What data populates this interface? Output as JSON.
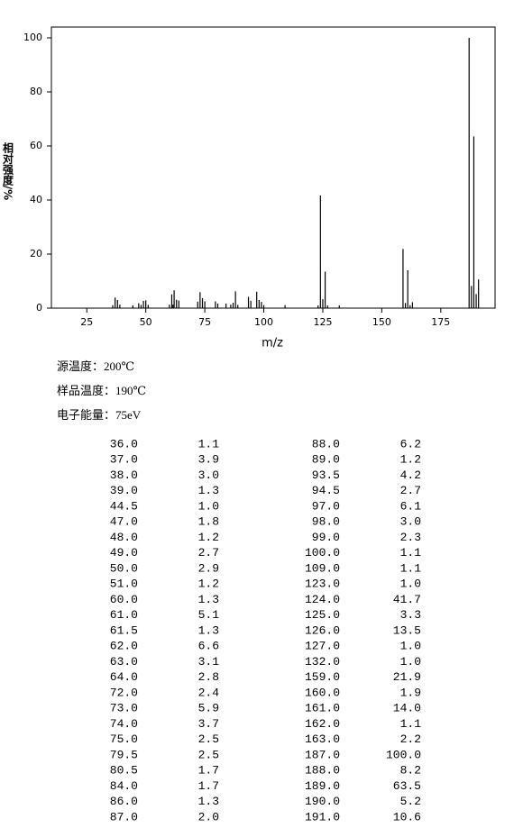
{
  "chart_data": {
    "type": "bar",
    "x_label": "m/z",
    "y_label": "相对强度/%",
    "x": [
      36,
      37,
      38,
      39,
      44.5,
      47,
      48,
      49,
      50,
      51,
      60,
      61,
      61.5,
      62,
      63,
      64,
      72,
      73,
      74,
      75,
      79.5,
      80.5,
      84,
      86,
      87,
      88,
      89,
      93.5,
      94.5,
      97,
      98,
      99,
      100,
      109,
      123,
      124,
      125,
      126,
      127,
      132,
      159,
      160,
      161,
      162,
      163,
      187,
      188,
      189,
      190,
      191
    ],
    "values": [
      1.1,
      3.9,
      3.0,
      1.3,
      1.0,
      1.8,
      1.2,
      2.7,
      2.9,
      1.2,
      1.3,
      5.1,
      1.3,
      6.6,
      3.1,
      2.8,
      2.4,
      5.9,
      3.7,
      2.5,
      2.5,
      1.7,
      1.7,
      1.3,
      2.0,
      6.2,
      1.2,
      4.2,
      2.7,
      6.1,
      3.0,
      2.3,
      1.1,
      1.1,
      1.0,
      41.7,
      3.3,
      13.5,
      1.0,
      1.0,
      21.9,
      1.9,
      14.0,
      1.1,
      2.2,
      100.0,
      8.2,
      63.5,
      5.2,
      10.6
    ],
    "color": "#000000",
    "xlim": [
      10,
      198
    ],
    "ylim": [
      0,
      104
    ],
    "xticks": [
      25,
      50,
      75,
      100,
      125,
      150,
      175
    ],
    "yticks": [
      0,
      20,
      40,
      60,
      80,
      100
    ]
  },
  "info": [
    "源温度：200℃",
    "样品温度：190℃",
    "电子能量：75eV"
  ],
  "peak_table": {
    "rows": [
      [
        "36.0",
        "1.1",
        "88.0",
        "6.2"
      ],
      [
        "37.0",
        "3.9",
        "89.0",
        "1.2"
      ],
      [
        "38.0",
        "3.0",
        "93.5",
        "4.2"
      ],
      [
        "39.0",
        "1.3",
        "94.5",
        "2.7"
      ],
      [
        "44.5",
        "1.0",
        "97.0",
        "6.1"
      ],
      [
        "47.0",
        "1.8",
        "98.0",
        "3.0"
      ],
      [
        "48.0",
        "1.2",
        "99.0",
        "2.3"
      ],
      [
        "49.0",
        "2.7",
        "100.0",
        "1.1"
      ],
      [
        "50.0",
        "2.9",
        "109.0",
        "1.1"
      ],
      [
        "51.0",
        "1.2",
        "123.0",
        "1.0"
      ],
      [
        "60.0",
        "1.3",
        "124.0",
        "41.7"
      ],
      [
        "61.0",
        "5.1",
        "125.0",
        "3.3"
      ],
      [
        "61.5",
        "1.3",
        "126.0",
        "13.5"
      ],
      [
        "62.0",
        "6.6",
        "127.0",
        "1.0"
      ],
      [
        "63.0",
        "3.1",
        "132.0",
        "1.0"
      ],
      [
        "64.0",
        "2.8",
        "159.0",
        "21.9"
      ],
      [
        "72.0",
        "2.4",
        "160.0",
        "1.9"
      ],
      [
        "73.0",
        "5.9",
        "161.0",
        "14.0"
      ],
      [
        "74.0",
        "3.7",
        "162.0",
        "1.1"
      ],
      [
        "75.0",
        "2.5",
        "163.0",
        "2.2"
      ],
      [
        "79.5",
        "2.5",
        "187.0",
        "100.0"
      ],
      [
        "80.5",
        "1.7",
        "188.0",
        "8.2"
      ],
      [
        "84.0",
        "1.7",
        "189.0",
        "63.5"
      ],
      [
        "86.0",
        "1.3",
        "190.0",
        "5.2"
      ],
      [
        "87.0",
        "2.0",
        "191.0",
        "10.6"
      ]
    ]
  }
}
